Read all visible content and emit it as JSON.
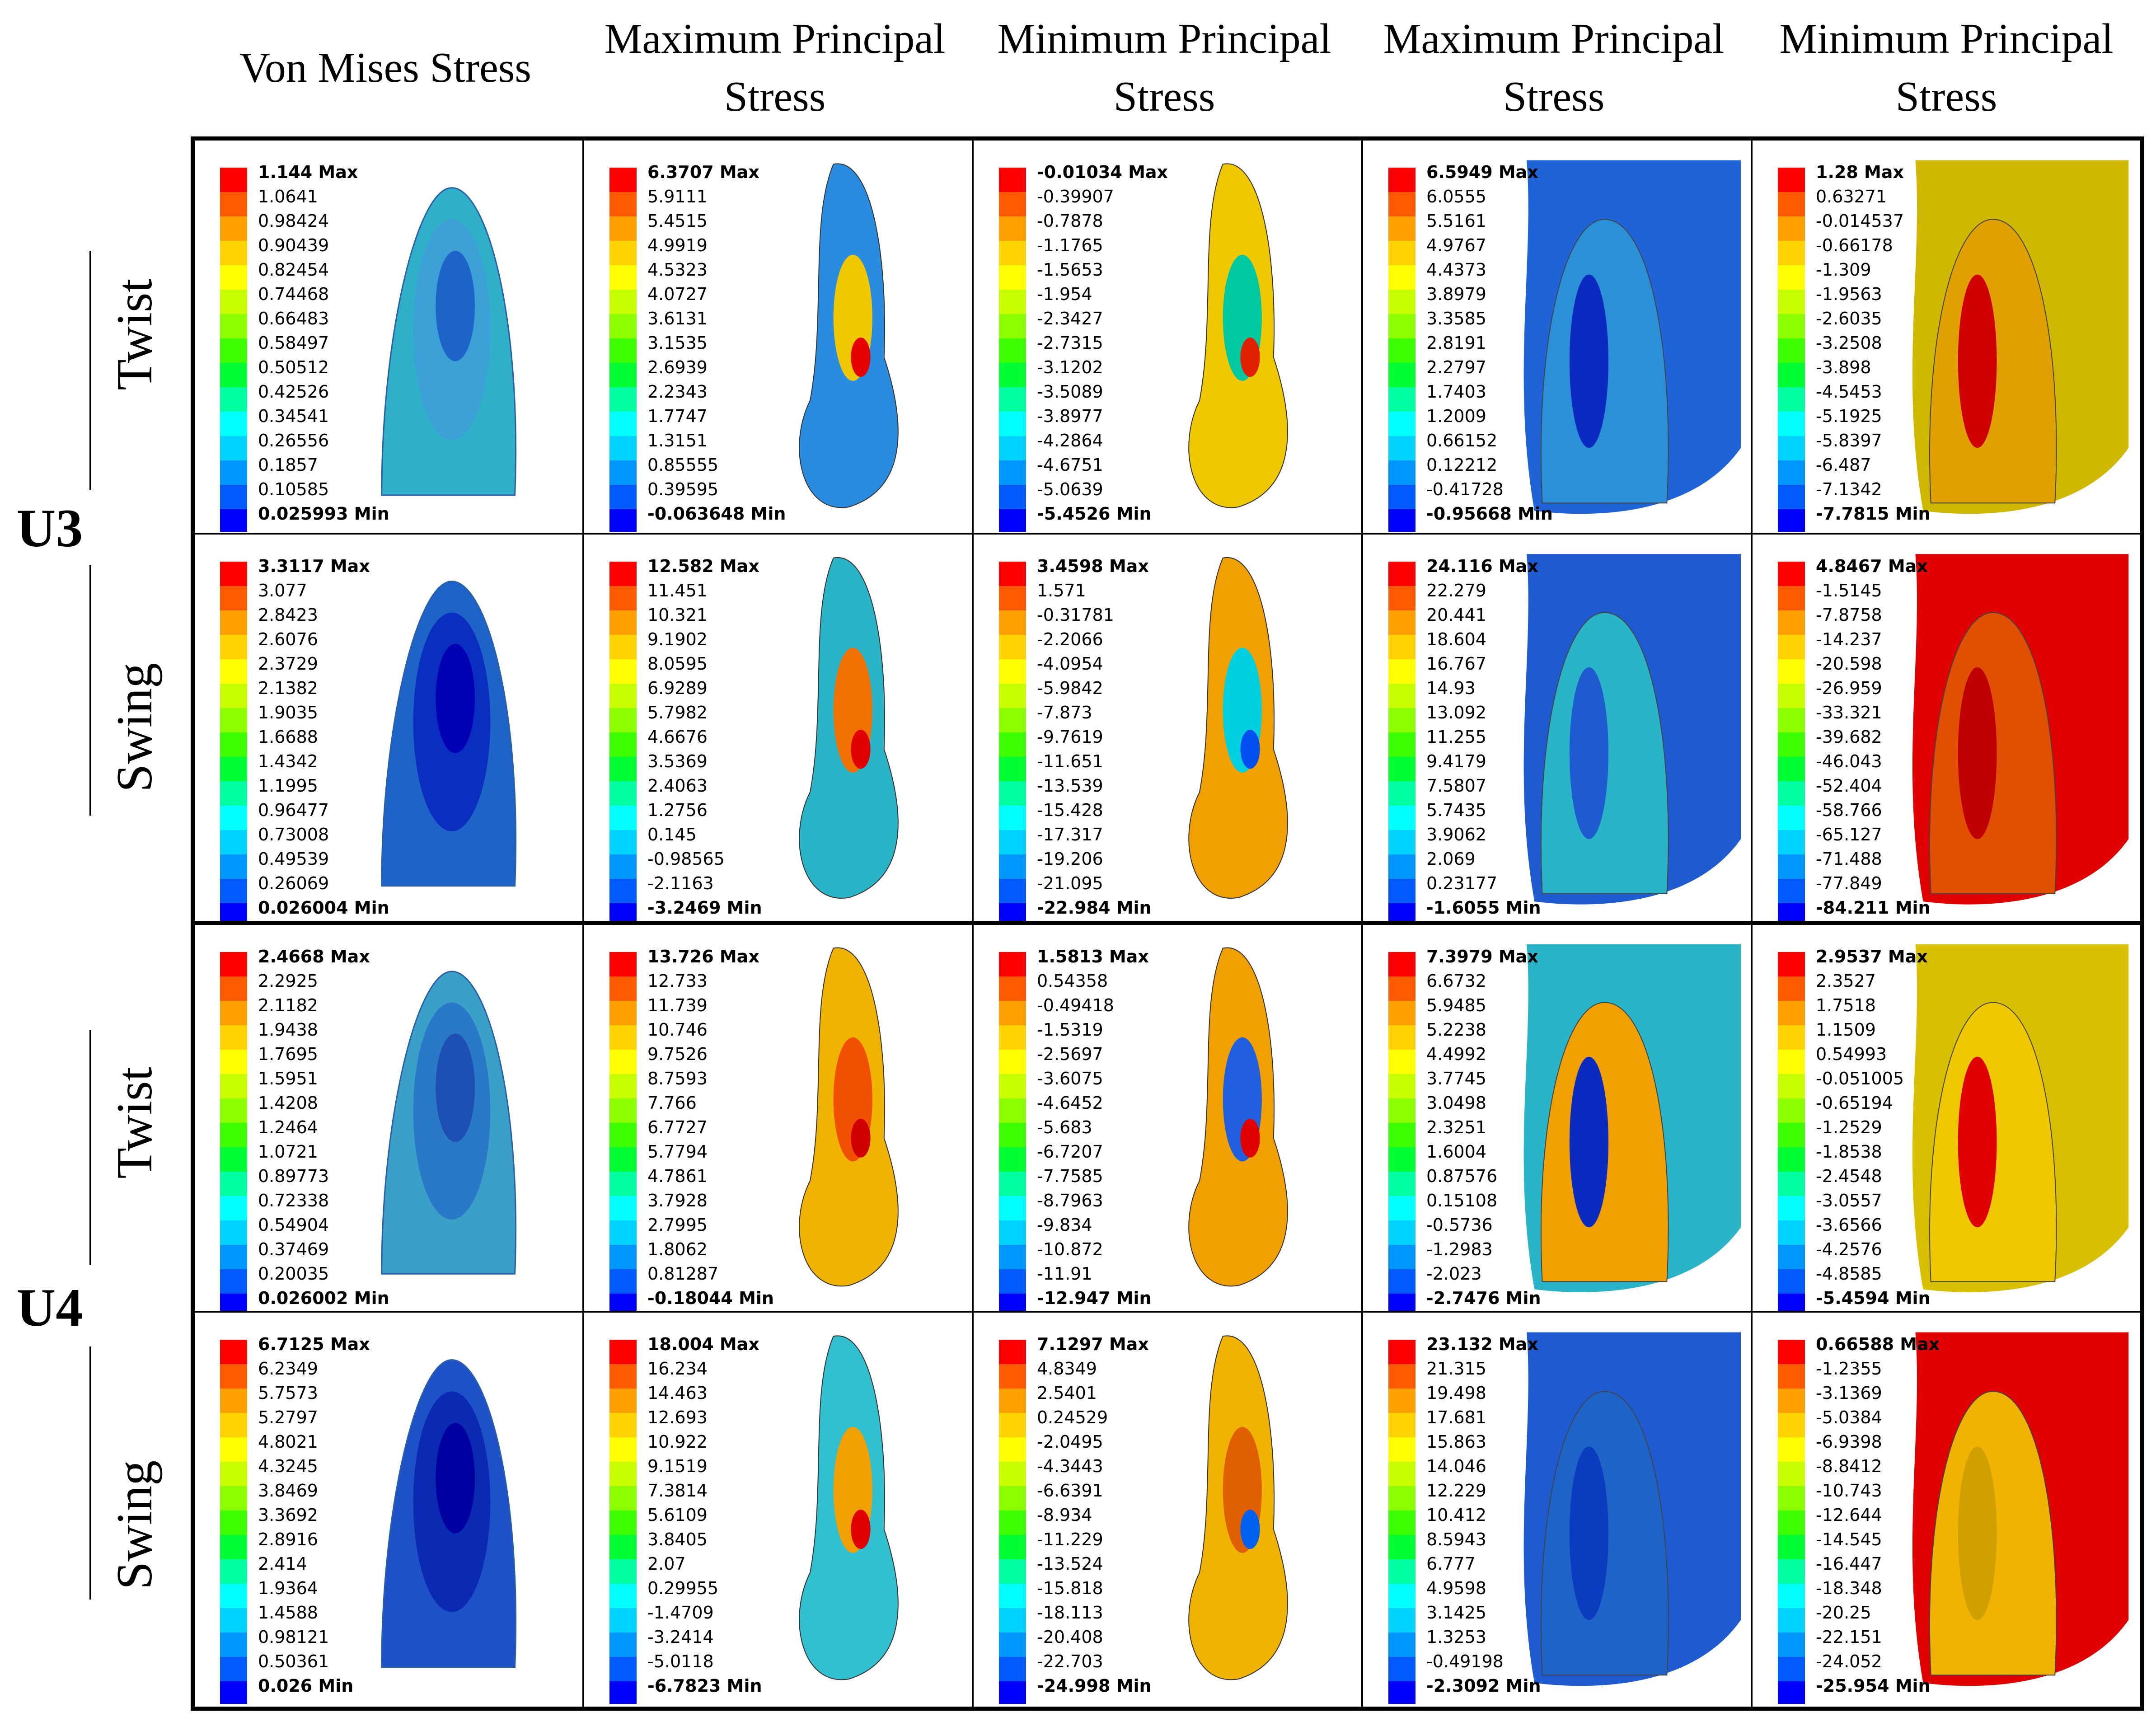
{
  "columns": [
    "Von Mises Stress",
    "Maximum Principal\nStress",
    "Minimum Principal\nStress",
    "Maximum Principal\nStress",
    "Minimum Principal\nStress"
  ],
  "groups": [
    {
      "label": "U3",
      "rows": [
        "Twist",
        "Swing"
      ]
    },
    {
      "label": "U4",
      "rows": [
        "Twist",
        "Swing"
      ]
    }
  ],
  "legend_colors": [
    "#ff0000",
    "#ff5a00",
    "#ffa000",
    "#ffd200",
    "#ffff00",
    "#c8ff00",
    "#8cff00",
    "#3cff00",
    "#00ff32",
    "#00ffa0",
    "#00ffff",
    "#00d2ff",
    "#0096ff",
    "#005aff",
    "#0000ff"
  ],
  "panels": [
    [
      {
        "labels": [
          "1.144 Max",
          "1.0641",
          "0.98424",
          "0.90439",
          "0.82454",
          "0.74468",
          "0.66483",
          "0.58497",
          "0.50512",
          "0.42526",
          "0.34541",
          "0.26556",
          "0.1857",
          "0.10585",
          "0.025993 Min"
        ]
      },
      {
        "labels": [
          "6.3707 Max",
          "5.9111",
          "5.4515",
          "4.9919",
          "4.5323",
          "4.0727",
          "3.6131",
          "3.1535",
          "2.6939",
          "2.2343",
          "1.7747",
          "1.3151",
          "0.85555",
          "0.39595",
          "-0.063648 Min"
        ]
      },
      {
        "labels": [
          "-0.01034 Max",
          "-0.39907",
          "-0.7878",
          "-1.1765",
          "-1.5653",
          "-1.954",
          "-2.3427",
          "-2.7315",
          "-3.1202",
          "-3.5089",
          "-3.8977",
          "-4.2864",
          "-4.6751",
          "-5.0639",
          "-5.4526 Min"
        ]
      },
      {
        "labels": [
          "6.5949 Max",
          "6.0555",
          "5.5161",
          "4.9767",
          "4.4373",
          "3.8979",
          "3.3585",
          "2.8191",
          "2.2797",
          "1.7403",
          "1.2009",
          "0.66152",
          "0.12212",
          "-0.41728",
          "-0.95668 Min"
        ]
      },
      {
        "labels": [
          "1.28 Max",
          "0.63271",
          "-0.014537",
          "-0.66178",
          "-1.309",
          "-1.9563",
          "-2.6035",
          "-3.2508",
          "-3.898",
          "-4.5453",
          "-5.1925",
          "-5.8397",
          "-6.487",
          "-7.1342",
          "-7.7815 Min"
        ]
      }
    ],
    [
      {
        "labels": [
          "3.3117 Max",
          "3.077",
          "2.8423",
          "2.6076",
          "2.3729",
          "2.1382",
          "1.9035",
          "1.6688",
          "1.4342",
          "1.1995",
          "0.96477",
          "0.73008",
          "0.49539",
          "0.26069",
          "0.026004 Min"
        ]
      },
      {
        "labels": [
          "12.582 Max",
          "11.451",
          "10.321",
          "9.1902",
          "8.0595",
          "6.9289",
          "5.7982",
          "4.6676",
          "3.5369",
          "2.4063",
          "1.2756",
          "0.145",
          "-0.98565",
          "-2.1163",
          "-3.2469 Min"
        ]
      },
      {
        "labels": [
          "3.4598 Max",
          "1.571",
          "-0.31781",
          "-2.2066",
          "-4.0954",
          "-5.9842",
          "-7.873",
          "-9.7619",
          "-11.651",
          "-13.539",
          "-15.428",
          "-17.317",
          "-19.206",
          "-21.095",
          "-22.984 Min"
        ]
      },
      {
        "labels": [
          "24.116 Max",
          "22.279",
          "20.441",
          "18.604",
          "16.767",
          "14.93",
          "13.092",
          "11.255",
          "9.4179",
          "7.5807",
          "5.7435",
          "3.9062",
          "2.069",
          "0.23177",
          "-1.6055 Min"
        ]
      },
      {
        "labels": [
          "4.8467 Max",
          "-1.5145",
          "-7.8758",
          "-14.237",
          "-20.598",
          "-26.959",
          "-33.321",
          "-39.682",
          "-46.043",
          "-52.404",
          "-58.766",
          "-65.127",
          "-71.488",
          "-77.849",
          "-84.211 Min"
        ]
      }
    ],
    [
      {
        "labels": [
          "2.4668 Max",
          "2.2925",
          "2.1182",
          "1.9438",
          "1.7695",
          "1.5951",
          "1.4208",
          "1.2464",
          "1.0721",
          "0.89773",
          "0.72338",
          "0.54904",
          "0.37469",
          "0.20035",
          "0.026002 Min"
        ]
      },
      {
        "labels": [
          "13.726 Max",
          "12.733",
          "11.739",
          "10.746",
          "9.7526",
          "8.7593",
          "7.766",
          "6.7727",
          "5.7794",
          "4.7861",
          "3.7928",
          "2.7995",
          "1.8062",
          "0.81287",
          "-0.18044 Min"
        ]
      },
      {
        "labels": [
          "1.5813 Max",
          "0.54358",
          "-0.49418",
          "-1.5319",
          "-2.5697",
          "-3.6075",
          "-4.6452",
          "-5.683",
          "-6.7207",
          "-7.7585",
          "-8.7963",
          "-9.834",
          "-10.872",
          "-11.91",
          "-12.947 Min"
        ]
      },
      {
        "labels": [
          "7.3979 Max",
          "6.6732",
          "5.9485",
          "5.2238",
          "4.4992",
          "3.7745",
          "3.0498",
          "2.3251",
          "1.6004",
          "0.87576",
          "0.15108",
          "-0.5736",
          "-1.2983",
          "-2.023",
          "-2.7476 Min"
        ]
      },
      {
        "labels": [
          "2.9537 Max",
          "2.3527",
          "1.7518",
          "1.1509",
          "0.54993",
          "-0.051005",
          "-0.65194",
          "-1.2529",
          "-1.8538",
          "-2.4548",
          "-3.0557",
          "-3.6566",
          "-4.2576",
          "-4.8585",
          "-5.4594 Min"
        ]
      }
    ],
    [
      {
        "labels": [
          "6.7125 Max",
          "6.2349",
          "5.7573",
          "5.2797",
          "4.8021",
          "4.3245",
          "3.8469",
          "3.3692",
          "2.8916",
          "2.414",
          "1.9364",
          "1.4588",
          "0.98121",
          "0.50361",
          "0.026 Min"
        ]
      },
      {
        "labels": [
          "18.004 Max",
          "16.234",
          "14.463",
          "12.693",
          "10.922",
          "9.1519",
          "7.3814",
          "5.6109",
          "3.8405",
          "2.07",
          "0.29955",
          "-1.4709",
          "-3.2414",
          "-5.0118",
          "-6.7823 Min"
        ]
      },
      {
        "labels": [
          "7.1297 Max",
          "4.8349",
          "2.5401",
          "0.24529",
          "-2.0495",
          "-4.3443",
          "-6.6391",
          "-8.934",
          "-11.229",
          "-13.524",
          "-15.818",
          "-18.113",
          "-20.408",
          "-22.703",
          "-24.998 Min"
        ]
      },
      {
        "labels": [
          "23.132 Max",
          "21.315",
          "19.498",
          "17.681",
          "15.863",
          "14.046",
          "12.229",
          "10.412",
          "8.5943",
          "6.777",
          "4.9598",
          "3.1425",
          "1.3253",
          "-0.49198",
          "-2.3092 Min"
        ]
      },
      {
        "labels": [
          "0.66588 Max",
          "-1.2355",
          "-3.1369",
          "-5.0384",
          "-6.9398",
          "-8.8412",
          "-10.743",
          "-12.644",
          "-14.545",
          "-16.447",
          "-18.348",
          "-20.25",
          "-22.151",
          "-24.052",
          "-25.954 Min"
        ]
      }
    ]
  ]
}
